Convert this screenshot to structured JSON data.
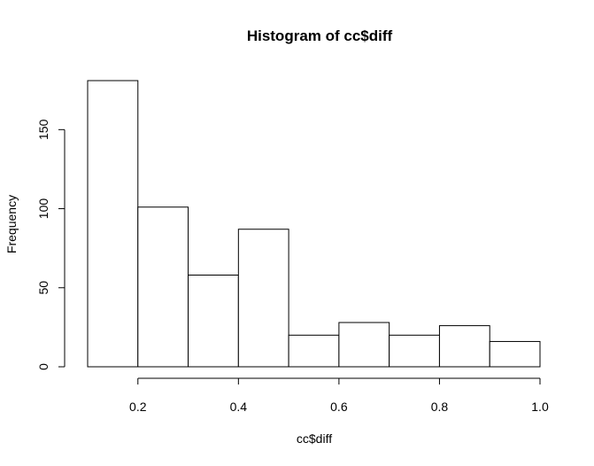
{
  "chart_data": {
    "type": "bar",
    "title": "Histogram of cc$diff",
    "xlabel": "cc$diff",
    "ylabel": "Frequency",
    "bins": [
      {
        "start": 0.1,
        "end": 0.2,
        "value": 181
      },
      {
        "start": 0.2,
        "end": 0.3,
        "value": 101
      },
      {
        "start": 0.3,
        "end": 0.4,
        "value": 58
      },
      {
        "start": 0.4,
        "end": 0.5,
        "value": 87
      },
      {
        "start": 0.5,
        "end": 0.6,
        "value": 20
      },
      {
        "start": 0.6,
        "end": 0.7,
        "value": 28
      },
      {
        "start": 0.7,
        "end": 0.8,
        "value": 20
      },
      {
        "start": 0.8,
        "end": 0.9,
        "value": 26
      },
      {
        "start": 0.9,
        "end": 1.0,
        "value": 16
      }
    ],
    "xlim": [
      0.1,
      1.0
    ],
    "ylim": [
      0,
      181
    ],
    "x_ticks": [
      0.2,
      0.4,
      0.6,
      0.8,
      1.0
    ],
    "x_tick_labels": [
      "0.2",
      "0.4",
      "0.6",
      "0.8",
      "1.0"
    ],
    "y_ticks": [
      0,
      50,
      100,
      150
    ],
    "y_tick_labels": [
      "0",
      "50",
      "100",
      "150"
    ],
    "grid": false,
    "bar_fill": "#ffffff",
    "bar_stroke": "#000000"
  }
}
